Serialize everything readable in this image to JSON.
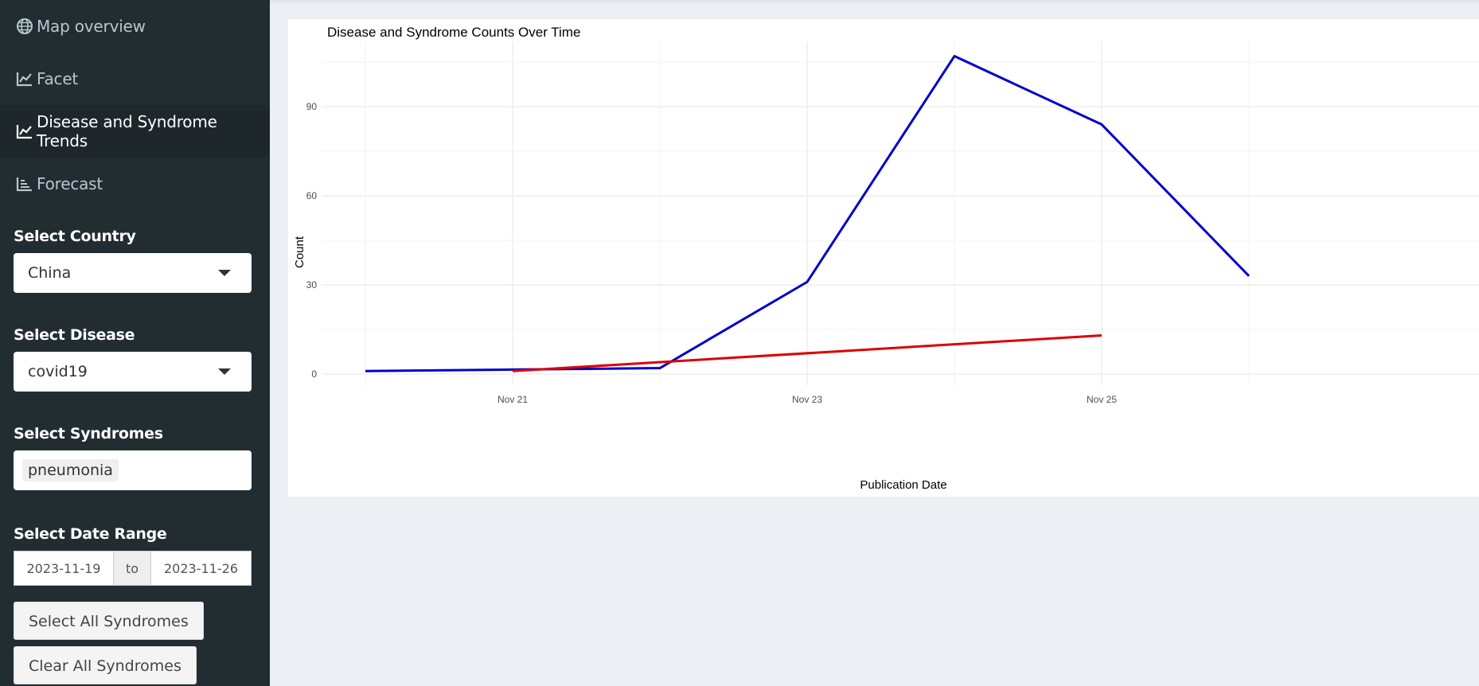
{
  "sidebar": {
    "menu": [
      {
        "label": "Map overview",
        "icon": "globe-icon",
        "active": false
      },
      {
        "label": "Facet",
        "icon": "line-chart-icon",
        "active": false
      },
      {
        "label": "Disease and Syndrome Trends",
        "icon": "line-chart-icon",
        "active": true
      },
      {
        "label": "Forecast",
        "icon": "bar-chart-icon",
        "active": false
      }
    ],
    "country": {
      "label": "Select Country",
      "value": "China"
    },
    "disease": {
      "label": "Select Disease",
      "value": "covid19"
    },
    "syndromes": {
      "label": "Select Syndromes",
      "tags": [
        "pneumonia"
      ]
    },
    "date_range": {
      "label": "Select Date Range",
      "start": "2023-11-19",
      "separator": "to",
      "end": "2023-11-26"
    },
    "buttons": {
      "select_all": "Select All Syndromes",
      "clear_all": "Clear All Syndromes"
    }
  },
  "colors": {
    "sidebar_bg": "#222d32",
    "series_blue": "#0000cc",
    "series_red": "#dd0000"
  },
  "chart_data": {
    "type": "line",
    "title": "Disease and Syndrome Counts Over Time",
    "xlabel": "Publication Date",
    "ylabel": "Count",
    "x_ticks": [
      "Nov 21",
      "Nov 23",
      "Nov 25"
    ],
    "y_ticks": [
      0,
      30,
      60,
      90
    ],
    "xlim": [
      "2023-11-19",
      "2023-11-27"
    ],
    "ylim": [
      0,
      115
    ],
    "grid": true,
    "legend": "none",
    "series": [
      {
        "color": "#0000cc",
        "x": [
          "2023-11-20",
          "2023-11-21",
          "2023-11-22",
          "2023-11-23",
          "2023-11-24",
          "2023-11-25",
          "2023-11-26"
        ],
        "y": [
          1,
          1.5,
          2,
          31,
          107,
          84,
          33
        ]
      },
      {
        "color": "#dd0000",
        "x": [
          "2023-11-21",
          "2023-11-25"
        ],
        "y": [
          1,
          13
        ]
      }
    ]
  }
}
